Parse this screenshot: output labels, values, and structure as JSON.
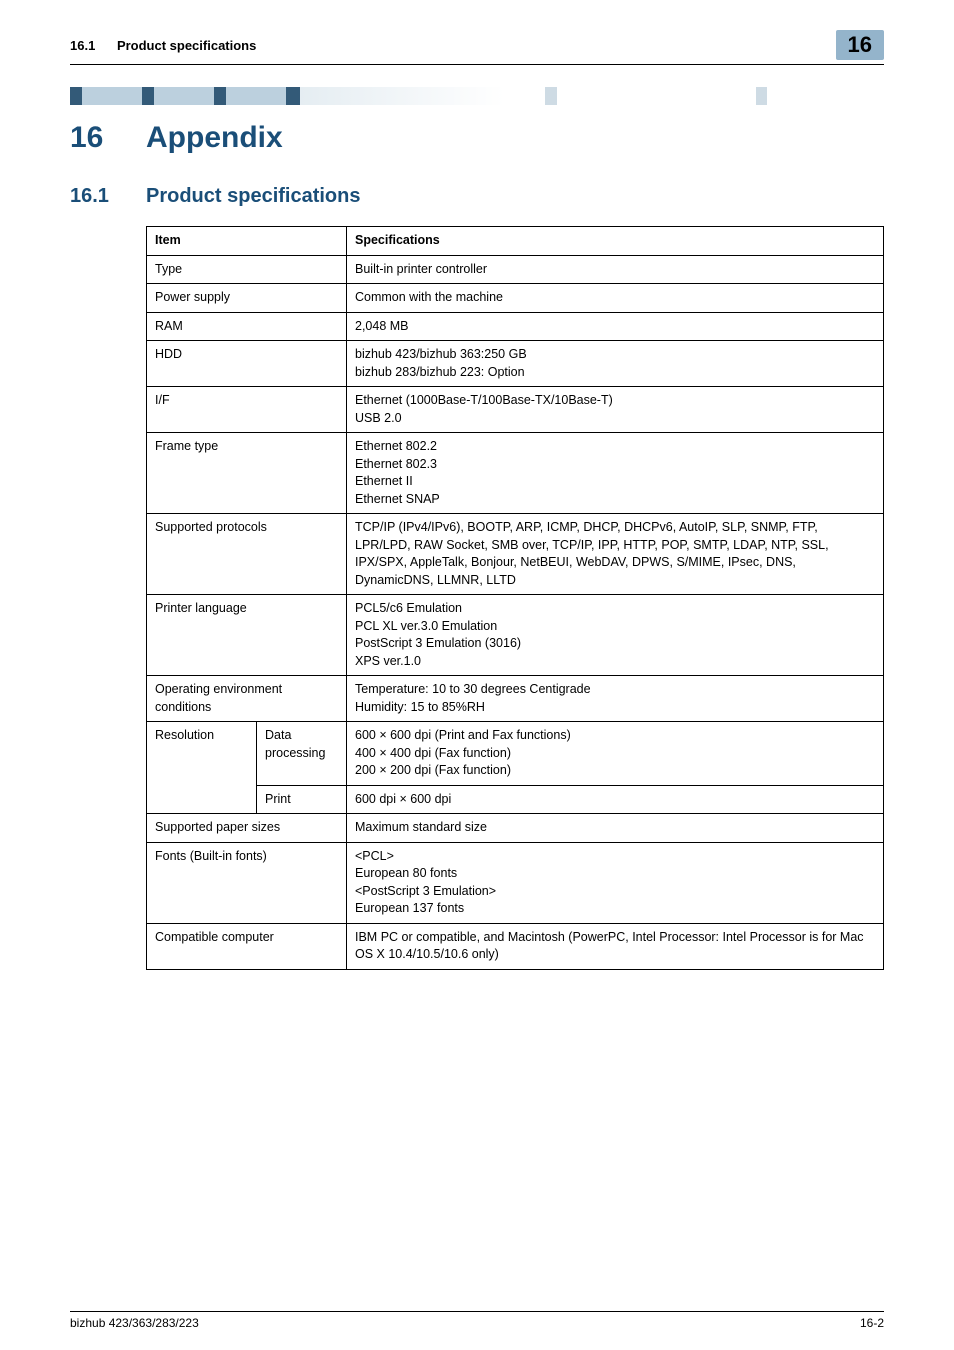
{
  "header": {
    "section_number": "16.1",
    "section_title": "Product specifications",
    "badge": "16"
  },
  "chapter": {
    "number": "16",
    "title": "Appendix"
  },
  "section": {
    "number": "16.1",
    "title": "Product specifications"
  },
  "table": {
    "head_item": "Item",
    "head_spec": "Specifications",
    "rows": {
      "type": {
        "label": "Type",
        "value": "Built-in printer controller"
      },
      "power": {
        "label": "Power supply",
        "value": "Common with the machine"
      },
      "ram": {
        "label": "RAM",
        "value": "2,048 MB"
      },
      "hdd": {
        "label": "HDD",
        "value": "bizhub 423/bizhub 363:250 GB\nbizhub 283/bizhub 223: Option"
      },
      "if": {
        "label": "I/F",
        "value": "Ethernet (1000Base-T/100Base-TX/10Base-T)\nUSB 2.0"
      },
      "frame": {
        "label": "Frame type",
        "value": "Ethernet 802.2\nEthernet 802.3\nEthernet II\nEthernet SNAP"
      },
      "protocols": {
        "label": "Supported protocols",
        "value": "TCP/IP (IPv4/IPv6), BOOTP, ARP, ICMP, DHCP, DHCPv6, AutoIP, SLP, SNMP, FTP, LPR/LPD, RAW Socket, SMB over, TCP/IP, IPP, HTTP, POP, SMTP, LDAP, NTP, SSL, IPX/SPX, AppleTalk, Bonjour, NetBEUI, WebDAV, DPWS, S/MIME, IPsec, DNS, DynamicDNS, LLMNR, LLTD"
      },
      "printer_lang": {
        "label": "Printer language",
        "value": "PCL5/c6 Emulation\nPCL XL ver.3.0 Emulation\nPostScript 3 Emulation (3016)\nXPS ver.1.0"
      },
      "env": {
        "label": "Operating environment conditions",
        "value": "Temperature: 10 to 30 degrees Centigrade\nHumidity: 15 to 85%RH"
      },
      "resolution": {
        "label": "Resolution",
        "sub1_label": "Data processing",
        "sub1_value": "600 × 600 dpi (Print and Fax functions)\n400 × 400 dpi (Fax function)\n200 × 200 dpi (Fax function)",
        "sub2_label": "Print",
        "sub2_value": "600 dpi × 600 dpi"
      },
      "paper": {
        "label": "Supported paper sizes",
        "value": "Maximum standard size"
      },
      "fonts": {
        "label": "Fonts (Built-in fonts)",
        "value": "<PCL>\nEuropean 80 fonts\n<PostScript 3 Emulation>\nEuropean 137 fonts"
      },
      "computer": {
        "label": "Compatible computer",
        "value": "IBM PC or compatible, and Macintosh (PowerPC, Intel Processor: Intel Processor is for Mac OS X 10.4/10.5/10.6 only)"
      }
    }
  },
  "footer": {
    "left": "bizhub 423/363/283/223",
    "right": "16-2"
  }
}
